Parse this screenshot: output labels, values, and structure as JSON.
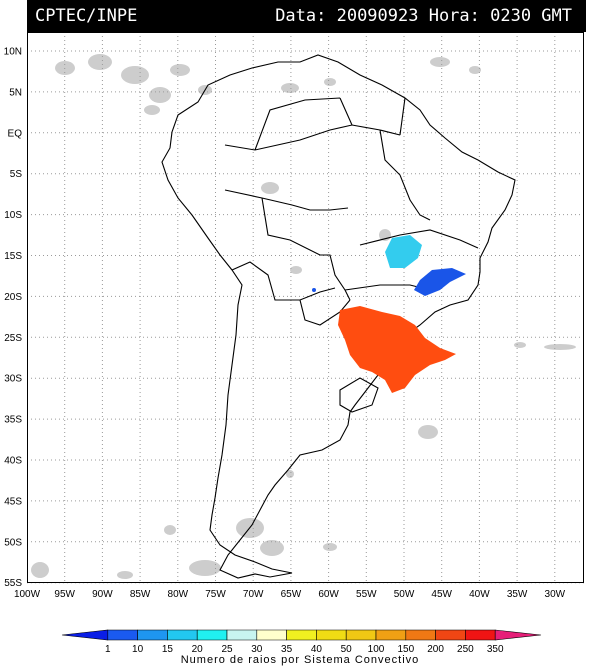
{
  "header": {
    "source": "CPTEC/INPE",
    "datetime": "Data: 20090923 Hora: 0230 GMT"
  },
  "map": {
    "region": "South America",
    "lat_labels": [
      "10N",
      "5N",
      "EQ",
      "5S",
      "10S",
      "15S",
      "20S",
      "25S",
      "30S",
      "35S",
      "40S",
      "45S",
      "50S",
      "55S"
    ],
    "lon_labels": [
      "100W",
      "95W",
      "90W",
      "85W",
      "80W",
      "75W",
      "70W",
      "65W",
      "60W",
      "55W",
      "50W",
      "45W",
      "40W",
      "35W",
      "30W"
    ],
    "grid_color": "#9a9a9a",
    "cloud_color": "#c8c8c8",
    "systems": [
      {
        "name": "goias-system",
        "color": "#33ccee"
      },
      {
        "name": "minas-system",
        "color": "#1a55e8"
      },
      {
        "name": "mato-grosso-dot",
        "color": "#1a55e8"
      },
      {
        "name": "south-brazil-system",
        "color": "#ff4d10"
      }
    ]
  },
  "colorbar": {
    "labels": [
      "1",
      "10",
      "15",
      "20",
      "25",
      "30",
      "35",
      "40",
      "50",
      "100",
      "150",
      "200",
      "250",
      "350"
    ],
    "colors": [
      "#0a1ee6",
      "#1a5af0",
      "#1e96f0",
      "#22c8f0",
      "#20f0f0",
      "#c8f5f0",
      "#ffffcc",
      "#f0f020",
      "#f0dc14",
      "#f0c814",
      "#f0a014",
      "#f07814",
      "#f04614",
      "#f01414",
      "#e61e78"
    ],
    "title": "Numero de raios por Sistema Convectivo"
  }
}
